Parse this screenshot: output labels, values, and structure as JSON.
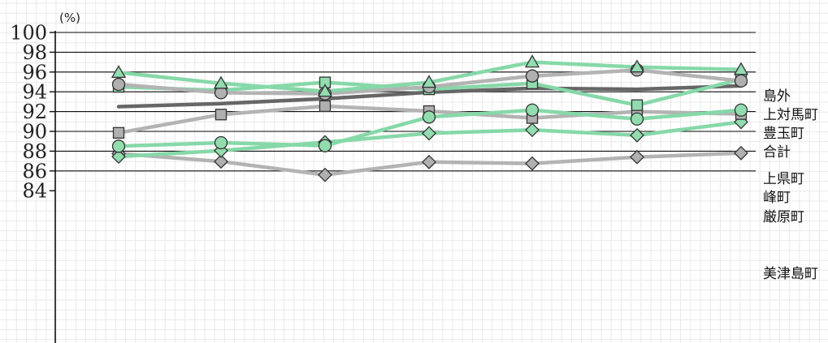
{
  "chart_data": {
    "type": "line",
    "ylabel": "(%)",
    "yticks": [
      "100",
      "98",
      "96",
      "94",
      "92",
      "90",
      "88",
      "86",
      "84"
    ],
    "ylim": [
      84,
      100
    ],
    "x": [
      1,
      2,
      3,
      4,
      5,
      6,
      7
    ],
    "grid": true,
    "colors": {
      "green": "#86d8a8",
      "gray": "#b3b3b3",
      "dark": "#666666",
      "marker_green": "#92dcb0",
      "marker_gray": "#b0b0b0"
    },
    "series": [
      {
        "name": "島外",
        "color": "green",
        "marker": "triangle",
        "values": [
          95.95,
          94.85,
          94.05,
          94.95,
          97.0,
          96.5,
          96.25
        ]
      },
      {
        "name": "上対馬町",
        "color": "gray",
        "marker": "circle",
        "values": [
          94.75,
          93.9,
          93.8,
          94.5,
          95.6,
          96.2,
          95.1
        ]
      },
      {
        "name": "豊玉町",
        "color": "green",
        "marker": "square",
        "values": [
          94.5,
          94.15,
          94.95,
          94.25,
          94.85,
          92.65,
          95.25
        ]
      },
      {
        "name": "合計",
        "color": "dark",
        "marker": "none",
        "values": [
          92.5,
          92.8,
          93.3,
          93.95,
          94.35,
          94.25,
          94.6
        ]
      },
      {
        "name": "上県町",
        "color": "green",
        "marker": "circle",
        "values": [
          88.5,
          88.85,
          88.55,
          91.45,
          92.15,
          91.25,
          92.15
        ]
      },
      {
        "name": "峰町",
        "color": "gray",
        "marker": "square",
        "values": [
          89.85,
          91.7,
          92.55,
          92.05,
          91.35,
          92.0,
          91.75
        ]
      },
      {
        "name": "厳原町",
        "color": "green",
        "marker": "diamond",
        "values": [
          87.45,
          88.05,
          88.9,
          89.8,
          90.15,
          89.6,
          90.95
        ]
      },
      {
        "name": "美津島町",
        "color": "gray",
        "marker": "diamond",
        "values": [
          87.75,
          86.95,
          85.6,
          86.9,
          86.75,
          87.4,
          87.8
        ]
      }
    ]
  }
}
